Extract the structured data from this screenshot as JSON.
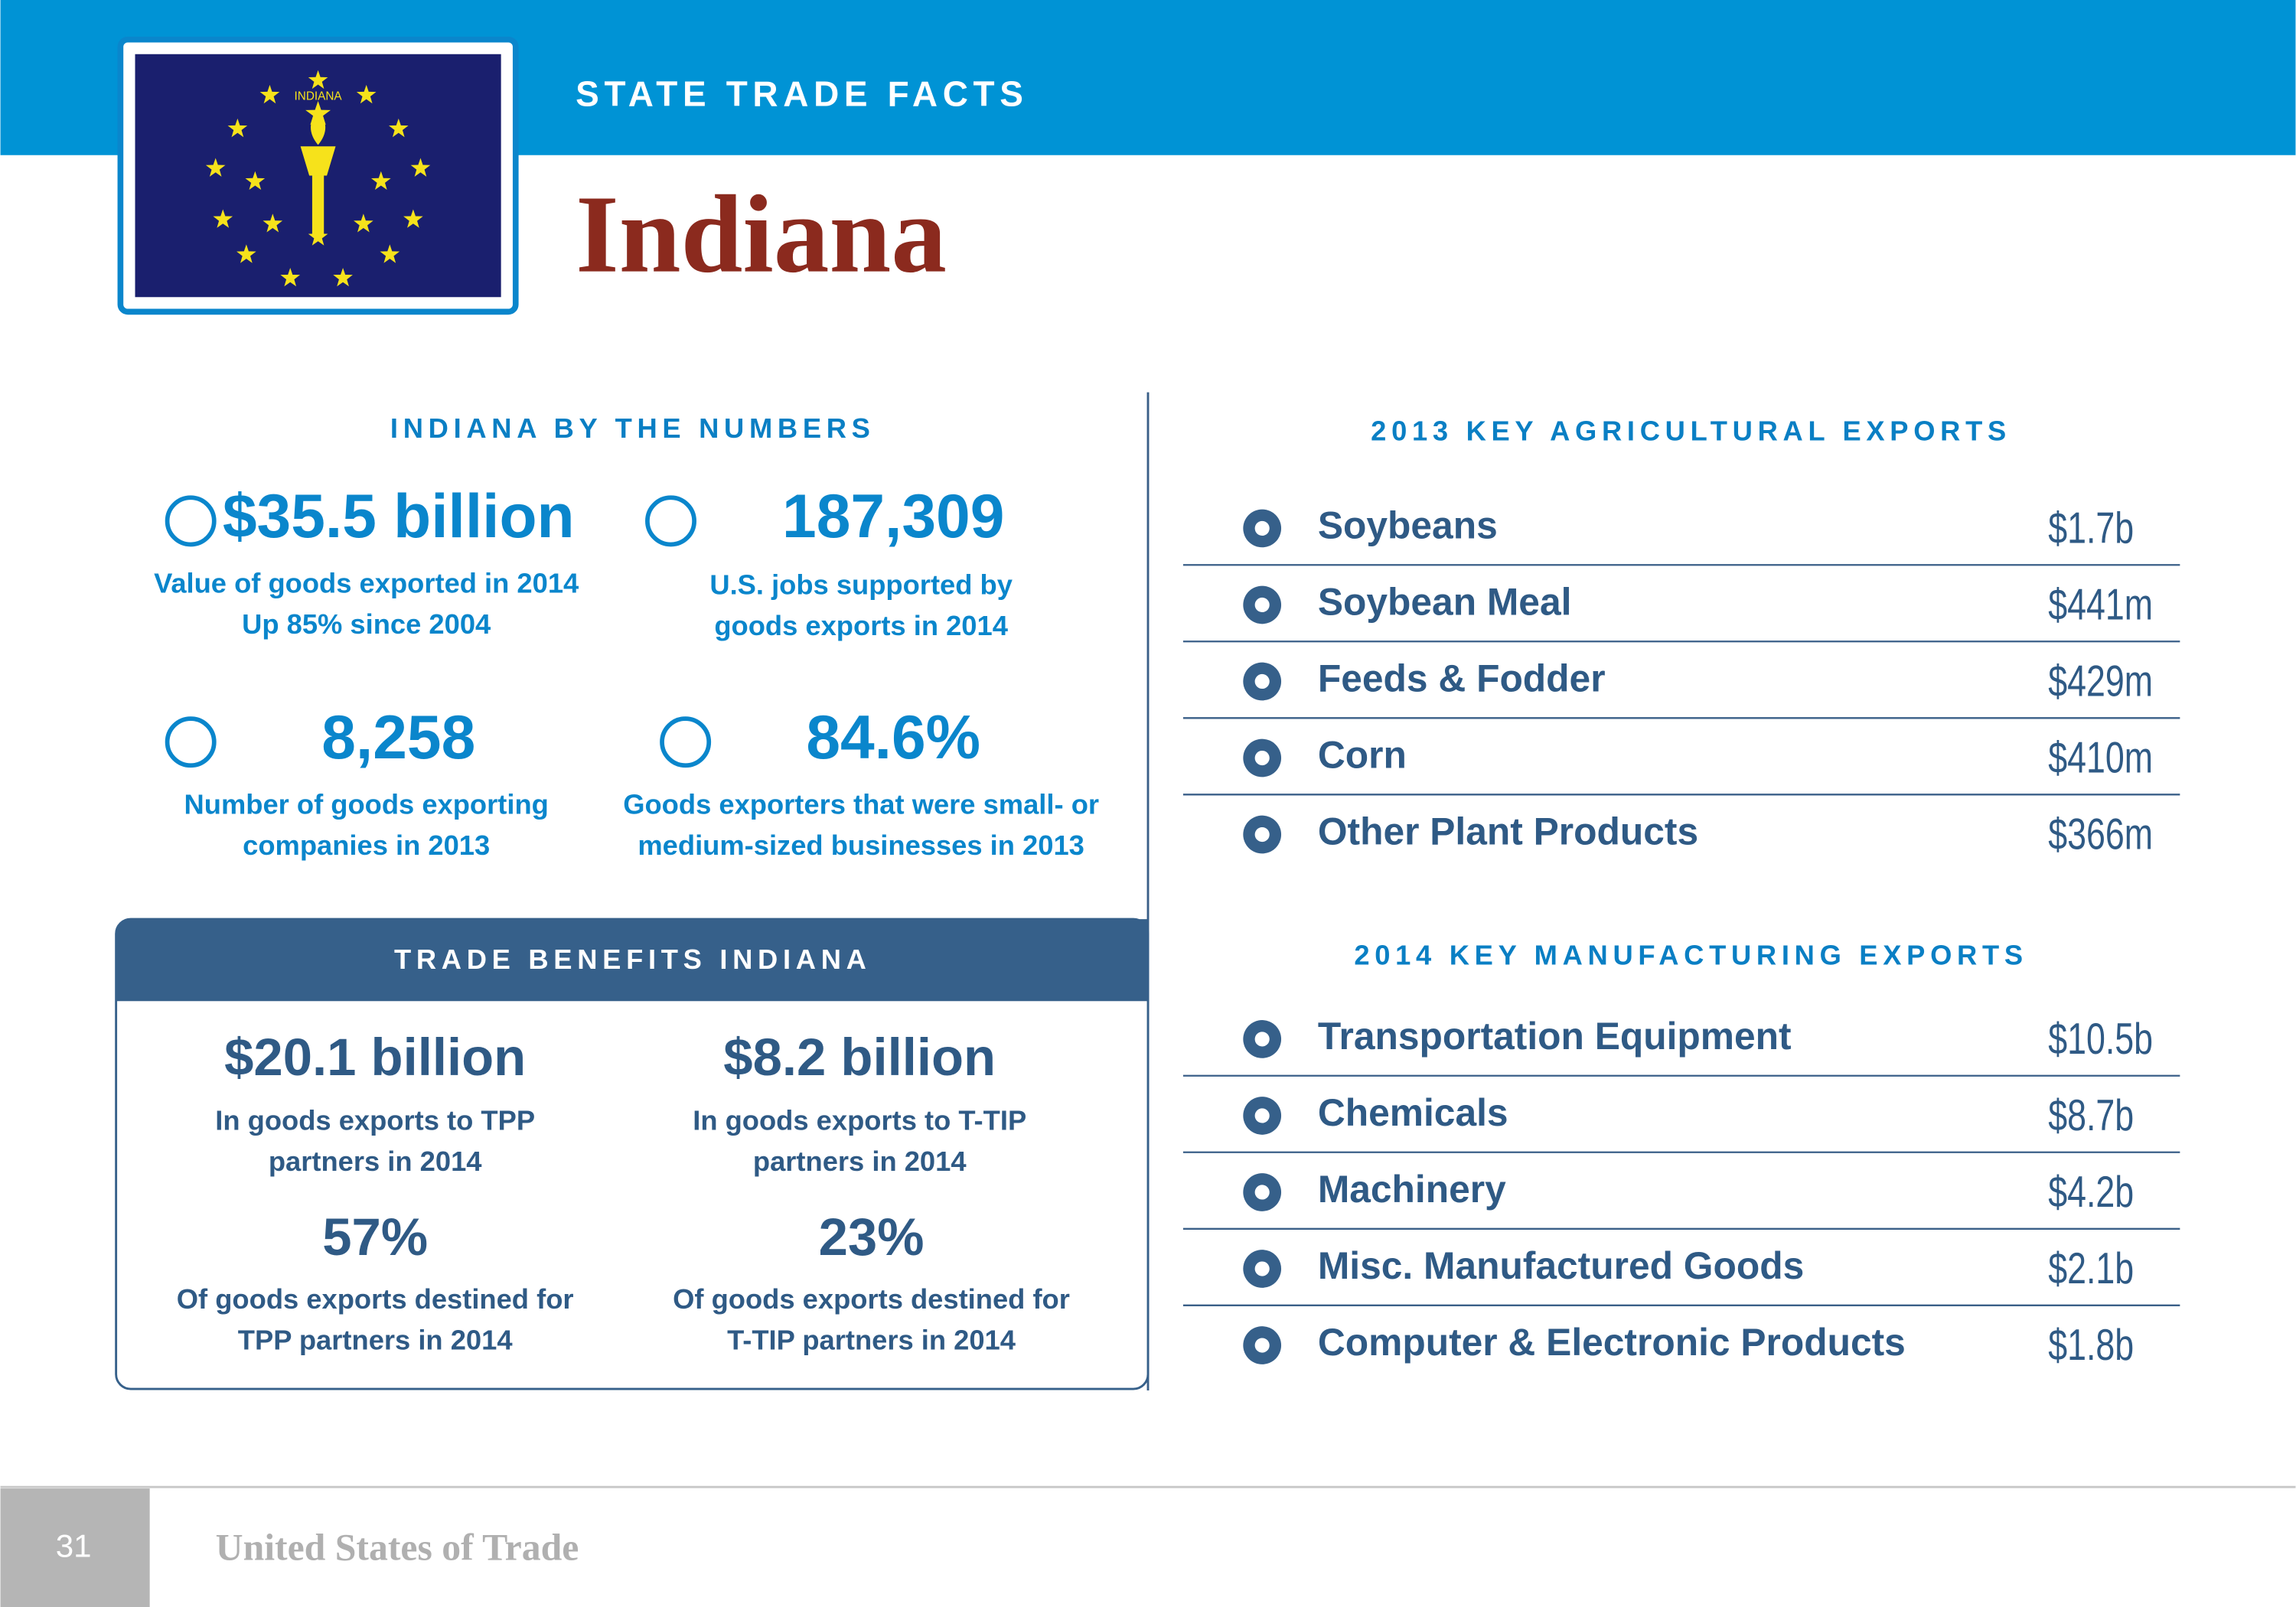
{
  "header": {
    "section_label": "STATE TRADE FACTS",
    "title": "Indiana",
    "flag_text": "INDIANA"
  },
  "numbers": {
    "heading": "INDIANA BY THE NUMBERS",
    "items": [
      {
        "value": "$35.5 billion",
        "lines": [
          "Value of goods exported in 2014",
          "Up 85% since 2004"
        ]
      },
      {
        "value": "187,309",
        "lines": [
          "U.S. jobs supported by",
          "goods exports in 2014"
        ]
      },
      {
        "value": "8,258",
        "lines": [
          "Number of goods exporting",
          "companies in 2013"
        ]
      },
      {
        "value": "84.6%",
        "lines": [
          "Goods exporters that were small- or",
          "medium-sized businesses in 2013"
        ]
      }
    ]
  },
  "benefits": {
    "heading": "TRADE BENEFITS INDIANA",
    "items": [
      {
        "value": "$20.1 billion",
        "lines": [
          "In goods exports to TPP",
          "partners in 2014"
        ]
      },
      {
        "value": "$8.2 billion",
        "lines": [
          "In goods exports to T-TIP",
          "partners in 2014"
        ]
      },
      {
        "value": "57%",
        "lines": [
          "Of goods exports destined for",
          "TPP partners in 2014"
        ]
      },
      {
        "value": "23%",
        "lines": [
          "Of goods exports destined for",
          "T-TIP partners in 2014"
        ]
      }
    ]
  },
  "agricultural": {
    "heading": "2013 KEY AGRICULTURAL EXPORTS",
    "rows": [
      {
        "label": "Soybeans",
        "value": "$1.7b"
      },
      {
        "label": "Soybean Meal",
        "value": "$441m"
      },
      {
        "label": "Feeds & Fodder",
        "value": "$429m"
      },
      {
        "label": "Corn",
        "value": "$410m"
      },
      {
        "label": "Other Plant Products",
        "value": "$366m"
      }
    ]
  },
  "manufacturing": {
    "heading": "2014 KEY MANUFACTURING EXPORTS",
    "rows": [
      {
        "label": "Transportation Equipment",
        "value": "$10.5b"
      },
      {
        "label": "Chemicals",
        "value": "$8.7b"
      },
      {
        "label": "Machinery",
        "value": "$4.2b"
      },
      {
        "label": "Misc. Manufactured Goods",
        "value": "$2.1b"
      },
      {
        "label": "Computer & Electronic Products",
        "value": "$1.8b"
      }
    ]
  },
  "footer": {
    "page_number": "31",
    "publication": "United States of Trade"
  }
}
